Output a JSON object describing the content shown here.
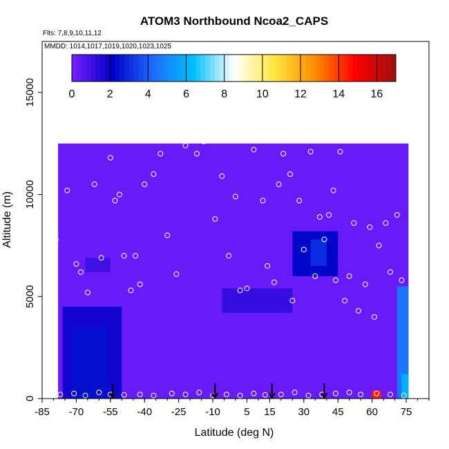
{
  "chart_data": {
    "type": "heatmap",
    "title": "ATOM3 Northbound Ncoa2_CAPS",
    "flights_label": "Flts: 7,8,9,10,11,12",
    "dates_label": "MMDD: 1014,1017,1019,1020,1023,1025",
    "xlabel": "Latitude (deg N)",
    "ylabel": "Altitude (m)",
    "xlim": [
      -85,
      85
    ],
    "ylim": [
      0,
      17500
    ],
    "x_ticks": [
      -85,
      -70,
      -55,
      -40,
      -25,
      -10,
      5,
      15,
      30,
      45,
      60,
      75
    ],
    "y_ticks": [
      0,
      5000,
      10000,
      15000
    ],
    "colorbar": {
      "min": 0,
      "max": 17,
      "ticks": [
        0,
        2,
        4,
        6,
        8,
        10,
        12,
        14,
        16
      ],
      "colors": [
        "#7a1fff",
        "#0000c8",
        "#1e6bff",
        "#00bfff",
        "#ffffff",
        "#ffe640",
        "#ff8c00",
        "#ff0000",
        "#a01010"
      ]
    },
    "arrows_latitude": [
      -54,
      -9,
      16,
      39
    ],
    "cells": [
      {
        "x": [
          -78,
          76
        ],
        "y": [
          0,
          12500
        ],
        "value": 0.3
      },
      {
        "x": [
          -76,
          -50
        ],
        "y": [
          0,
          4500
        ],
        "value": 1.8
      },
      {
        "x": [
          -72,
          -56
        ],
        "y": [
          0,
          3500
        ],
        "value": 2.4
      },
      {
        "x": [
          -6,
          25
        ],
        "y": [
          4200,
          5400
        ],
        "value": 1.2
      },
      {
        "x": [
          25,
          45
        ],
        "y": [
          6000,
          8200
        ],
        "value": 2.2
      },
      {
        "x": [
          33,
          40
        ],
        "y": [
          6500,
          7800
        ],
        "value": 3.0
      },
      {
        "x": [
          -66,
          -55
        ],
        "y": [
          6200,
          6900
        ],
        "value": 1.0
      },
      {
        "x": [
          60,
          64
        ],
        "y": [
          0,
          400
        ],
        "value": 14.5
      },
      {
        "x": [
          71,
          76
        ],
        "y": [
          0,
          5500
        ],
        "value": 4.5
      },
      {
        "x": [
          73,
          76
        ],
        "y": [
          0,
          1200
        ],
        "value": 6.0
      }
    ],
    "samples": [
      [
        -77,
        200
      ],
      [
        -71,
        250
      ],
      [
        -66,
        150
      ],
      [
        -60,
        300
      ],
      [
        -55,
        200
      ],
      [
        -49,
        180
      ],
      [
        -42,
        200
      ],
      [
        -36,
        150
      ],
      [
        -28,
        250
      ],
      [
        -22,
        200
      ],
      [
        -16,
        300
      ],
      [
        -10,
        150
      ],
      [
        -4,
        200
      ],
      [
        2,
        150
      ],
      [
        8,
        250
      ],
      [
        13,
        180
      ],
      [
        20,
        200
      ],
      [
        26,
        300
      ],
      [
        32,
        150
      ],
      [
        38,
        200
      ],
      [
        44,
        250
      ],
      [
        50,
        300
      ],
      [
        55,
        200
      ],
      [
        62,
        250
      ],
      [
        68,
        200
      ],
      [
        74,
        150
      ],
      [
        -79,
        7800
      ],
      [
        -74,
        10200
      ],
      [
        -70,
        6600
      ],
      [
        -68,
        6200
      ],
      [
        -65,
        5200
      ],
      [
        -62,
        10500
      ],
      [
        -59,
        6900
      ],
      [
        -55,
        11800
      ],
      [
        -53,
        9700
      ],
      [
        -51,
        10000
      ],
      [
        -49,
        7000
      ],
      [
        -46,
        5300
      ],
      [
        -44,
        7000
      ],
      [
        -42,
        5600
      ],
      [
        -40,
        10500
      ],
      [
        -36,
        11000
      ],
      [
        -33,
        12000
      ],
      [
        -30,
        8000
      ],
      [
        -26,
        6100
      ],
      [
        -22,
        12400
      ],
      [
        -17,
        12000
      ],
      [
        -14,
        12600
      ],
      [
        -11,
        13200
      ],
      [
        -9,
        8800
      ],
      [
        -6,
        10900
      ],
      [
        -3,
        7000
      ],
      [
        0,
        9900
      ],
      [
        2,
        5300
      ],
      [
        5,
        5400
      ],
      [
        8,
        12200
      ],
      [
        12,
        9700
      ],
      [
        14,
        6500
      ],
      [
        17,
        5700
      ],
      [
        19,
        10500
      ],
      [
        21,
        12000
      ],
      [
        24,
        11000
      ],
      [
        25,
        4800
      ],
      [
        28,
        9700
      ],
      [
        30,
        7300
      ],
      [
        33,
        12100
      ],
      [
        35,
        6000
      ],
      [
        37,
        8900
      ],
      [
        39,
        7800
      ],
      [
        41,
        9000
      ],
      [
        43,
        10200
      ],
      [
        44,
        5800
      ],
      [
        46,
        12100
      ],
      [
        48,
        4800
      ],
      [
        50,
        6000
      ],
      [
        52,
        8600
      ],
      [
        54,
        4300
      ],
      [
        57,
        5600
      ],
      [
        59,
        8400
      ],
      [
        61,
        4000
      ],
      [
        63,
        7500
      ],
      [
        66,
        8600
      ],
      [
        68,
        6200
      ],
      [
        71,
        9000
      ],
      [
        73,
        5800
      ]
    ]
  }
}
